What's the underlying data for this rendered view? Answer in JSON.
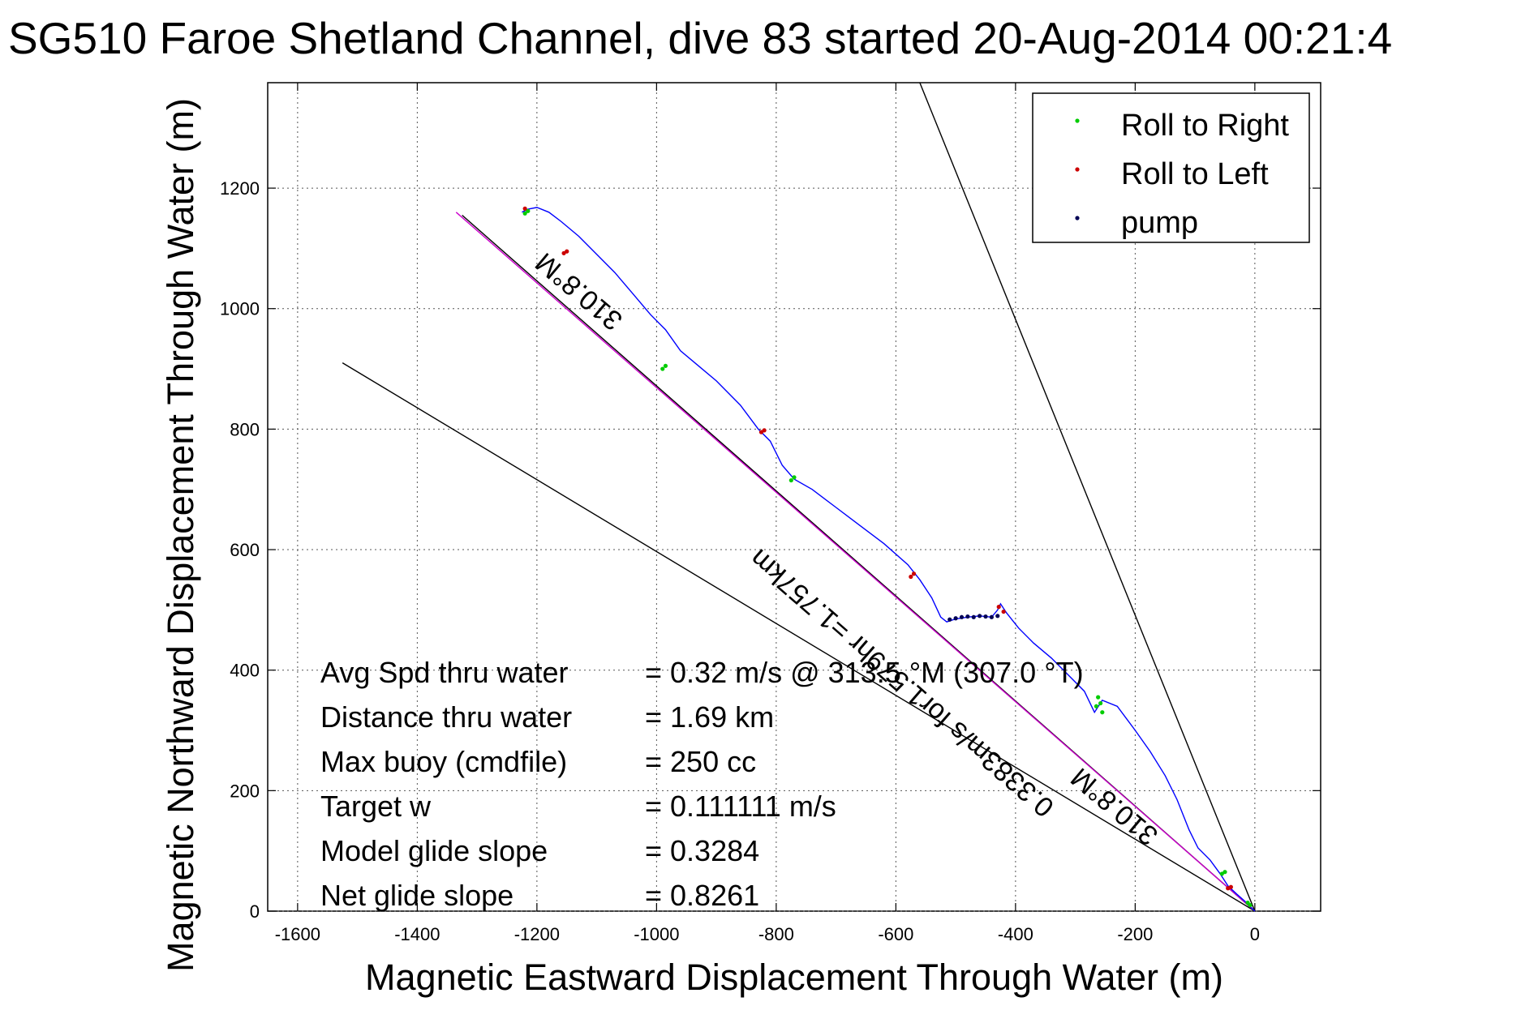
{
  "chart_data": {
    "type": "line",
    "title": "SG510 Faroe Shetland Channel, dive 83 started 20-Aug-2014 00:21:4",
    "xlabel": "Magnetic Eastward Displacement Through Water (m)",
    "ylabel": "Magnetic Northward Displacement Through Water (m)",
    "xlim": [
      -1650,
      110
    ],
    "ylim": [
      0,
      1375
    ],
    "xticks": [
      -1600,
      -1400,
      -1200,
      -1000,
      -800,
      -600,
      -400,
      -200,
      0
    ],
    "yticks": [
      0,
      200,
      400,
      600,
      800,
      1000,
      1200
    ],
    "grid": true,
    "legend": {
      "placement": "top-right",
      "entries": [
        {
          "label": "Roll to Right",
          "color": "#00cc00"
        },
        {
          "label": "Roll to Left",
          "color": "#cc0000"
        },
        {
          "label": "pump",
          "color": "#000055"
        }
      ]
    },
    "track": {
      "color": "#0000ff",
      "x": [
        0,
        -15,
        -30,
        -45,
        -58,
        -75,
        -95,
        -110,
        -130,
        -150,
        -175,
        -200,
        -230,
        -255,
        -268,
        -285,
        -310,
        -340,
        -370,
        -395,
        -415,
        -425,
        -430,
        -440,
        -460,
        -480,
        -500,
        -515,
        -525,
        -540,
        -560,
        -580,
        -620,
        -660,
        -700,
        -740,
        -770,
        -790,
        -810,
        -830,
        -860,
        -900,
        -930,
        -960,
        -985,
        -1010,
        -1040,
        -1070,
        -1100,
        -1130,
        -1160,
        -1180,
        -1200,
        -1215,
        -1225
      ],
      "y": [
        0,
        15,
        28,
        42,
        62,
        85,
        105,
        135,
        185,
        225,
        265,
        300,
        340,
        350,
        330,
        365,
        390,
        420,
        445,
        470,
        495,
        510,
        500,
        488,
        490,
        488,
        485,
        480,
        488,
        520,
        550,
        575,
        610,
        640,
        670,
        700,
        717,
        740,
        780,
        800,
        840,
        880,
        905,
        930,
        965,
        990,
        1025,
        1060,
        1090,
        1120,
        1145,
        1160,
        1168,
        1165,
        1160
      ]
    },
    "roll_right": {
      "x": [
        -8,
        -12,
        -50,
        -55,
        -255,
        -258,
        -262,
        -265,
        -770,
        -775,
        -985,
        -990,
        -1215,
        -1220
      ],
      "y": [
        10,
        14,
        65,
        62,
        330,
        345,
        355,
        340,
        720,
        715,
        905,
        900,
        1162,
        1158
      ]
    },
    "roll_left": {
      "x": [
        -40,
        -45,
        -420,
        -428,
        -570,
        -575,
        -820,
        -825,
        -1150,
        -1155,
        -1220
      ],
      "y": [
        40,
        38,
        497,
        505,
        560,
        555,
        798,
        795,
        1095,
        1092,
        1166
      ]
    },
    "pump": {
      "x": [
        -430,
        -440,
        -450,
        -460,
        -470,
        -480,
        -490,
        -500,
        -510
      ],
      "y": [
        490,
        488,
        489,
        490,
        488,
        489,
        488,
        486,
        484
      ]
    },
    "heading_line": {
      "color": "#cc00cc",
      "x": [
        0,
        -1335
      ],
      "y": [
        0,
        1160
      ]
    },
    "depth_average_line": {
      "color": "#000000",
      "x": [
        0,
        -1325
      ],
      "y": [
        0,
        1155
      ]
    },
    "bound_upper": {
      "color": "#000000",
      "x": [
        0,
        -560
      ],
      "y": [
        0,
        1375
      ]
    },
    "bound_lower": {
      "color": "#000000",
      "x": [
        0,
        -1525
      ],
      "y": [
        0,
        910
      ]
    },
    "annotations": [
      {
        "text": "310.8°M",
        "x": -1120,
        "y": 1040,
        "angle": -40
      },
      {
        "text": "0.3383m/s for1.579hr =1.757km",
        "x": -580,
        "y": 390,
        "angle": -41
      },
      {
        "text": "310.8°M",
        "x": -225,
        "y": 185,
        "angle": -40
      }
    ]
  },
  "stats": [
    {
      "label": "Avg Spd thru water",
      "value": "=  0.32 m/s @ 313.5 °M (307.0 °T)"
    },
    {
      "label": "Distance thru water",
      "value": "=  1.69 km"
    },
    {
      "label": "Max buoy (cmdfile)",
      "value": "= 250 cc"
    },
    {
      "label": "Target w",
      "value": "= 0.111111 m/s"
    },
    {
      "label": "Model glide slope",
      "value": "= 0.3284"
    },
    {
      "label": "Net glide slope",
      "value": "= 0.8261"
    }
  ]
}
